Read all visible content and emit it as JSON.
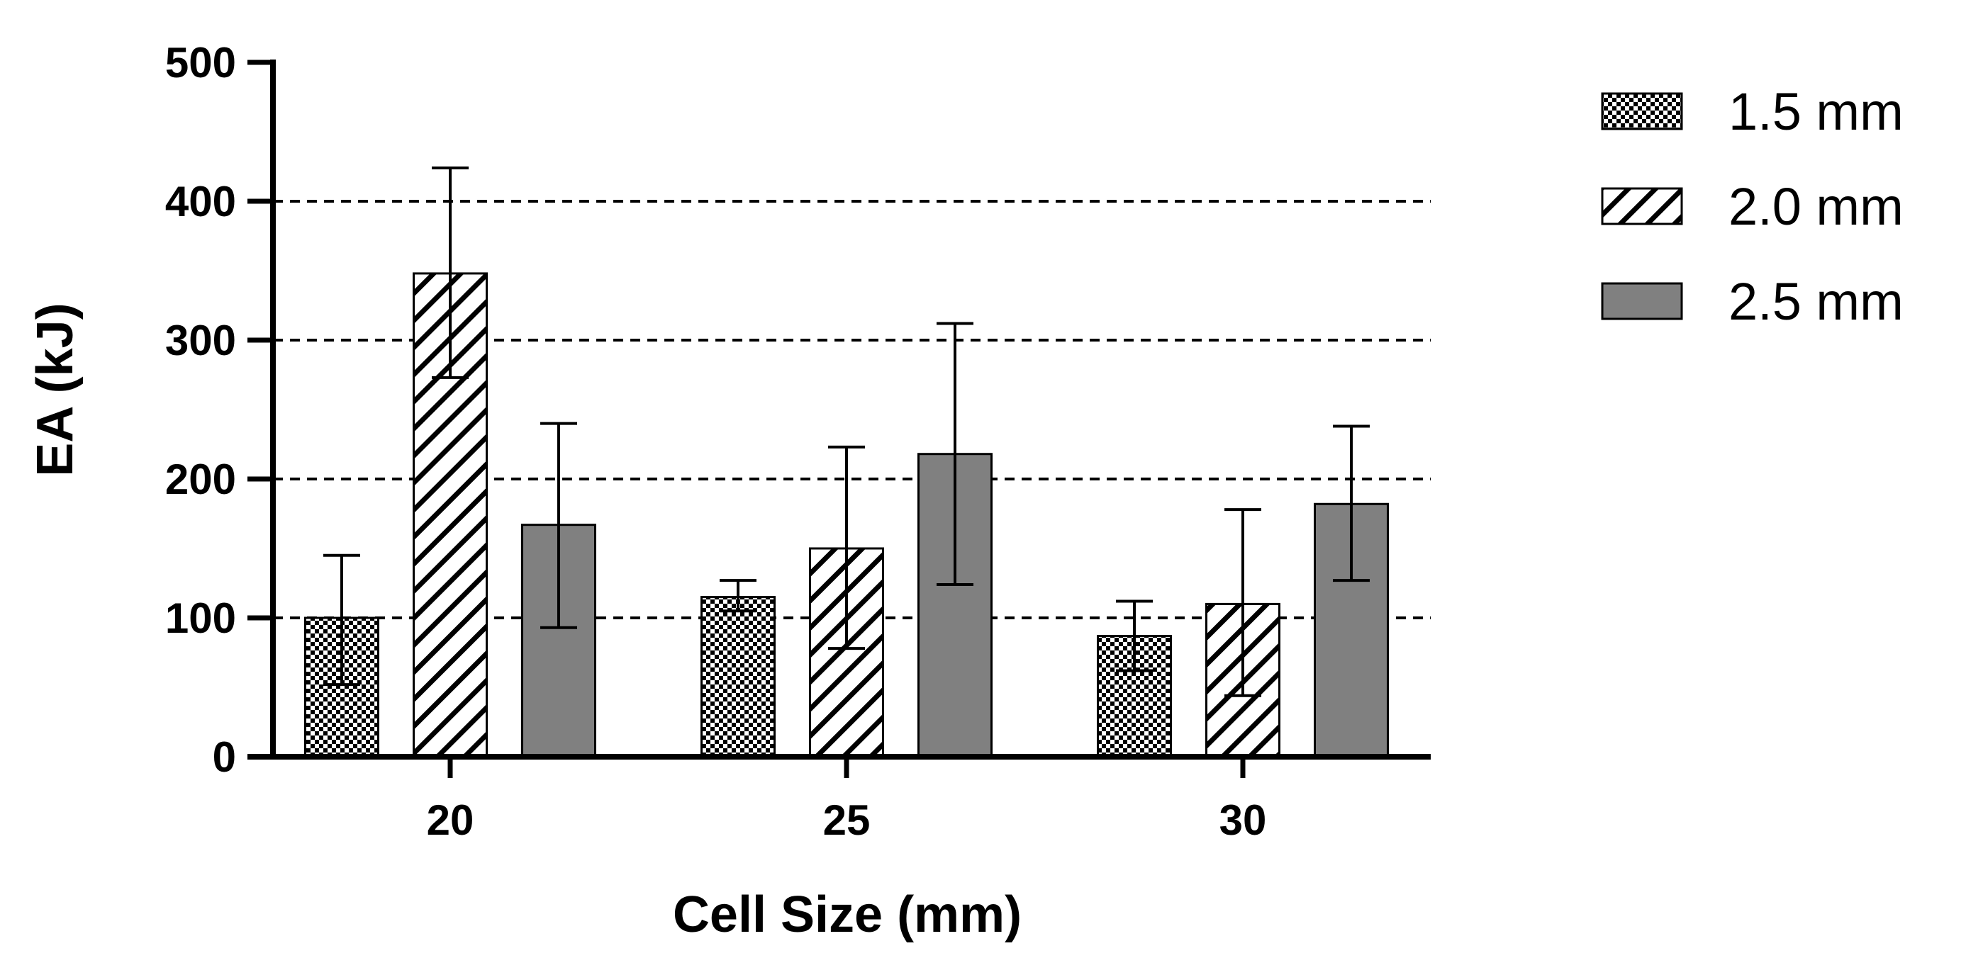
{
  "chart_data": {
    "type": "bar",
    "title": "",
    "xlabel": "Cell Size (mm)",
    "ylabel": "EA (kJ)",
    "categories": [
      "20",
      "25",
      "30"
    ],
    "ylim": [
      0,
      500
    ],
    "yticks": [
      0,
      100,
      200,
      300,
      400,
      500
    ],
    "grid": "dashed horizontal at 100, 200, 300, 400",
    "legend_position": "top-right",
    "series": [
      {
        "name": "1.5 mm",
        "pattern": "checker",
        "color": "#000000",
        "values": [
          100,
          115,
          87
        ],
        "err_low": [
          52,
          105,
          62
        ],
        "err_high": [
          145,
          127,
          112
        ]
      },
      {
        "name": "2.0 mm",
        "pattern": "diagonal",
        "color": "#000000",
        "values": [
          348,
          150,
          110
        ],
        "err_low": [
          273,
          78,
          44
        ],
        "err_high": [
          424,
          223,
          178
        ]
      },
      {
        "name": "2.5 mm",
        "pattern": "solid",
        "color": "#808080",
        "values": [
          167,
          218,
          182
        ],
        "err_low": [
          93,
          124,
          127
        ],
        "err_high": [
          240,
          312,
          238
        ]
      }
    ]
  }
}
